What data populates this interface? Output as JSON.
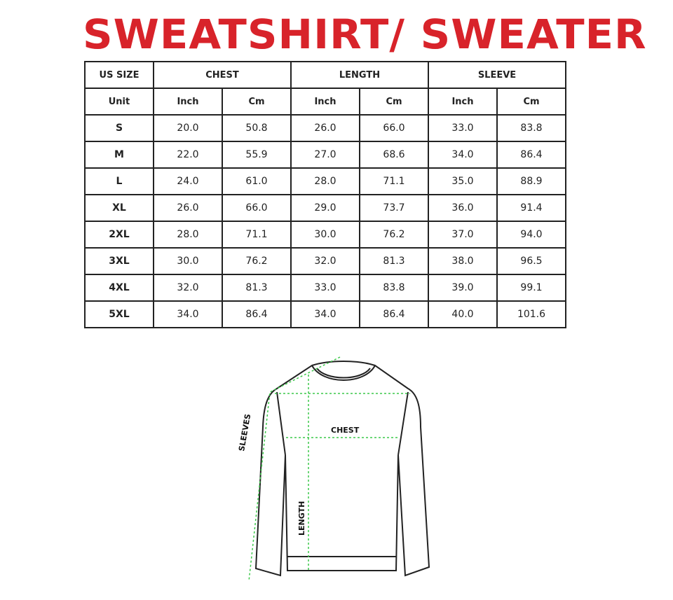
{
  "title": "SWEATSHIRT/ SWEATER",
  "table": {
    "header": {
      "size": "US SIZE",
      "groups": [
        "CHEST",
        "LENGTH",
        "SLEEVE"
      ]
    },
    "units": [
      "Unit",
      "Inch",
      "Cm",
      "Inch",
      "Cm",
      "Inch",
      "Cm"
    ],
    "rows": [
      [
        "S",
        "20.0",
        "50.8",
        "26.0",
        "66.0",
        "33.0",
        "83.8"
      ],
      [
        "M",
        "22.0",
        "55.9",
        "27.0",
        "68.6",
        "34.0",
        "86.4"
      ],
      [
        "L",
        "24.0",
        "61.0",
        "28.0",
        "71.1",
        "35.0",
        "88.9"
      ],
      [
        "XL",
        "26.0",
        "66.0",
        "29.0",
        "73.7",
        "36.0",
        "91.4"
      ],
      [
        "2XL",
        "28.0",
        "71.1",
        "30.0",
        "76.2",
        "37.0",
        "94.0"
      ],
      [
        "3XL",
        "30.0",
        "76.2",
        "32.0",
        "81.3",
        "38.0",
        "96.5"
      ],
      [
        "4XL",
        "32.0",
        "81.3",
        "33.0",
        "83.8",
        "39.0",
        "99.1"
      ],
      [
        "5XL",
        "34.0",
        "86.4",
        "34.0",
        "86.4",
        "40.0",
        "101.6"
      ]
    ]
  },
  "diagram": {
    "chest": "CHEST",
    "sleeves": "SLEEVES",
    "length": "LENGTH",
    "measure_color": "#3cc84a",
    "title_color": "#d8232a"
  }
}
